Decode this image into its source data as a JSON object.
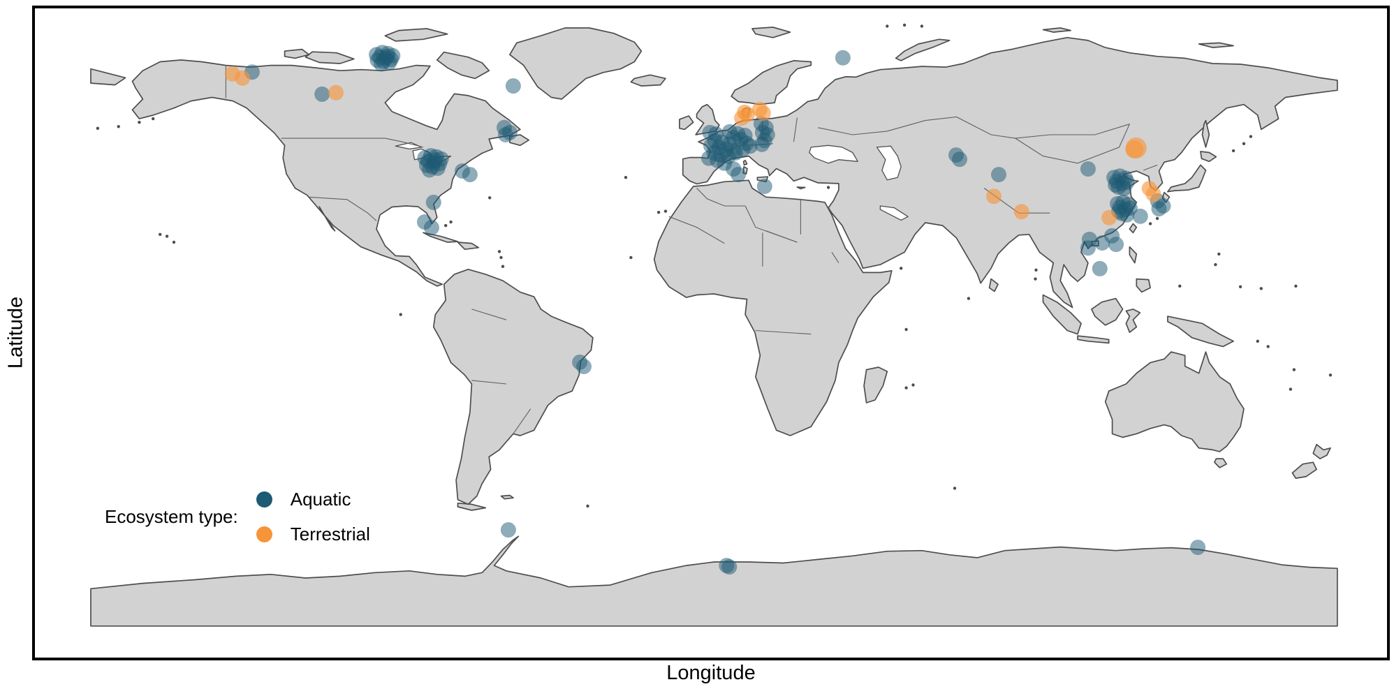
{
  "figure": {
    "xlabel": "Longitude",
    "ylabel": "Latitude",
    "border_color": "#000000",
    "background": "#ffffff"
  },
  "legend": {
    "title": "Ecosystem type:",
    "items": [
      {
        "id": "aquatic",
        "label": "Aquatic",
        "color": "#1d5a73"
      },
      {
        "id": "terrestrial",
        "label": "Terrestrial",
        "color": "#f7943a"
      }
    ]
  },
  "chart_data": {
    "type": "scatter",
    "projection": "equirectangular world map",
    "xlabel": "Longitude",
    "ylabel": "Latitude",
    "xlim": [
      -180,
      180
    ],
    "ylim": [
      -88,
      84
    ],
    "legend_position": "inside bottom-left",
    "map": {
      "land": "#d2d2d2",
      "coastline": "#4d4d4d",
      "ocean": "#ffffff"
    },
    "marker": {
      "radius_px": 11,
      "aquatic_opacity": 0.5,
      "terrestrial_opacity": 0.62
    },
    "series": [
      {
        "name": "Aquatic",
        "color": "#1d5a73",
        "opacity": 0.5,
        "points": [
          [
            -97.5,
            72.5
          ],
          [
            -95.8,
            73.1
          ],
          [
            -94.2,
            72.8
          ],
          [
            -92.8,
            72.2
          ],
          [
            -96.5,
            71.8
          ],
          [
            -94.9,
            71.5
          ],
          [
            -93.3,
            71.2
          ],
          [
            -97.2,
            70.9
          ],
          [
            -95.5,
            70.6
          ],
          [
            -93.8,
            70.3
          ],
          [
            -96.1,
            69.9
          ],
          [
            -94.4,
            72.0
          ],
          [
            -133.4,
            67.6
          ],
          [
            -113.2,
            61.4
          ],
          [
            -58.0,
            63.7
          ],
          [
            -60.6,
            52.0
          ],
          [
            -59.0,
            50.6
          ],
          [
            -60.2,
            50.0
          ],
          [
            -83.5,
            43.5
          ],
          [
            -81.8,
            44.1
          ],
          [
            -80.2,
            43.8
          ],
          [
            -78.8,
            43.2
          ],
          [
            -82.6,
            42.6
          ],
          [
            -80.9,
            42.2
          ],
          [
            -79.3,
            41.9
          ],
          [
            -83.0,
            41.4
          ],
          [
            -81.3,
            41.0
          ],
          [
            -79.8,
            40.6
          ],
          [
            -82.2,
            40.1
          ],
          [
            -80.6,
            42.9
          ],
          [
            -72.7,
            39.8
          ],
          [
            -70.5,
            38.8
          ],
          [
            -81.0,
            31.0
          ],
          [
            -83.6,
            25.5
          ],
          [
            -81.6,
            23.9
          ],
          [
            -38.8,
            -13.9
          ],
          [
            -37.6,
            -15.1
          ],
          [
            -1.2,
            50.6
          ],
          [
            0.5,
            50.2
          ],
          [
            4.5,
            50.8
          ],
          [
            6.8,
            50.3
          ],
          [
            8.9,
            49.8
          ],
          [
            5.6,
            49.2
          ],
          [
            7.7,
            48.7
          ],
          [
            0.2,
            48.3
          ],
          [
            2.3,
            47.9
          ],
          [
            4.4,
            47.4
          ],
          [
            -0.9,
            46.9
          ],
          [
            1.4,
            46.4
          ],
          [
            3.5,
            45.9
          ],
          [
            5.7,
            45.5
          ],
          [
            0.0,
            44.9
          ],
          [
            2.0,
            44.4
          ],
          [
            4.1,
            43.9
          ],
          [
            6.2,
            44.9
          ],
          [
            8.3,
            45.9
          ],
          [
            -1.5,
            43.4
          ],
          [
            1.0,
            42.8
          ],
          [
            3.0,
            42.0
          ],
          [
            9.4,
            47.6
          ],
          [
            10.4,
            46.8
          ],
          [
            5.6,
            40.4
          ],
          [
            7.0,
            38.8
          ],
          [
            14.6,
            35.5
          ],
          [
            13.6,
            53.1
          ],
          [
            15.0,
            52.0
          ],
          [
            14.0,
            50.6
          ],
          [
            15.4,
            50.0
          ],
          [
            14.6,
            48.4
          ],
          [
            13.8,
            47.3
          ],
          [
            37.2,
            71.6
          ],
          [
            69.9,
            44.3
          ],
          [
            70.9,
            43.1
          ],
          [
            82.2,
            38.8
          ],
          [
            108.0,
            40.4
          ],
          [
            115.5,
            38.0
          ],
          [
            117.2,
            38.4
          ],
          [
            118.8,
            37.8
          ],
          [
            116.2,
            36.9
          ],
          [
            117.9,
            36.3
          ],
          [
            119.3,
            36.7
          ],
          [
            116.8,
            35.3
          ],
          [
            118.4,
            34.9
          ],
          [
            115.9,
            35.9
          ],
          [
            128.1,
            31.4
          ],
          [
            129.7,
            30.0
          ],
          [
            128.5,
            29.2
          ],
          [
            116.5,
            30.6
          ],
          [
            118.1,
            31.0
          ],
          [
            119.6,
            30.4
          ],
          [
            117.2,
            29.6
          ],
          [
            118.8,
            29.0
          ],
          [
            120.1,
            29.4
          ],
          [
            117.7,
            27.9
          ],
          [
            119.2,
            27.5
          ],
          [
            116.9,
            28.5
          ],
          [
            123.1,
            27.1
          ],
          [
            108.4,
            20.6
          ],
          [
            112.1,
            19.6
          ],
          [
            114.9,
            21.6
          ],
          [
            116.1,
            19.2
          ],
          [
            108.0,
            18.2
          ],
          [
            111.4,
            12.4
          ],
          [
            -59.4,
            -61.0
          ],
          [
            3.6,
            -71.0
          ],
          [
            4.4,
            -71.4
          ],
          [
            139.7,
            -65.9
          ]
        ]
      },
      {
        "name": "Terrestrial",
        "color": "#f7943a",
        "opacity": 0.62,
        "points": [
          [
            -139.1,
            67.1
          ],
          [
            -136.2,
            65.9
          ],
          [
            -109.2,
            61.8
          ],
          [
            8.0,
            54.7
          ],
          [
            8.8,
            56.3
          ],
          [
            9.6,
            55.7
          ],
          [
            13.2,
            57.1
          ],
          [
            14.2,
            56.1
          ],
          [
            80.8,
            32.7
          ],
          [
            88.8,
            28.4
          ],
          [
            121.9,
            46.3,
            15
          ],
          [
            121.4,
            45.9,
            13
          ],
          [
            125.7,
            34.9
          ],
          [
            126.9,
            33.3
          ],
          [
            114.1,
            26.7
          ]
        ]
      }
    ]
  }
}
